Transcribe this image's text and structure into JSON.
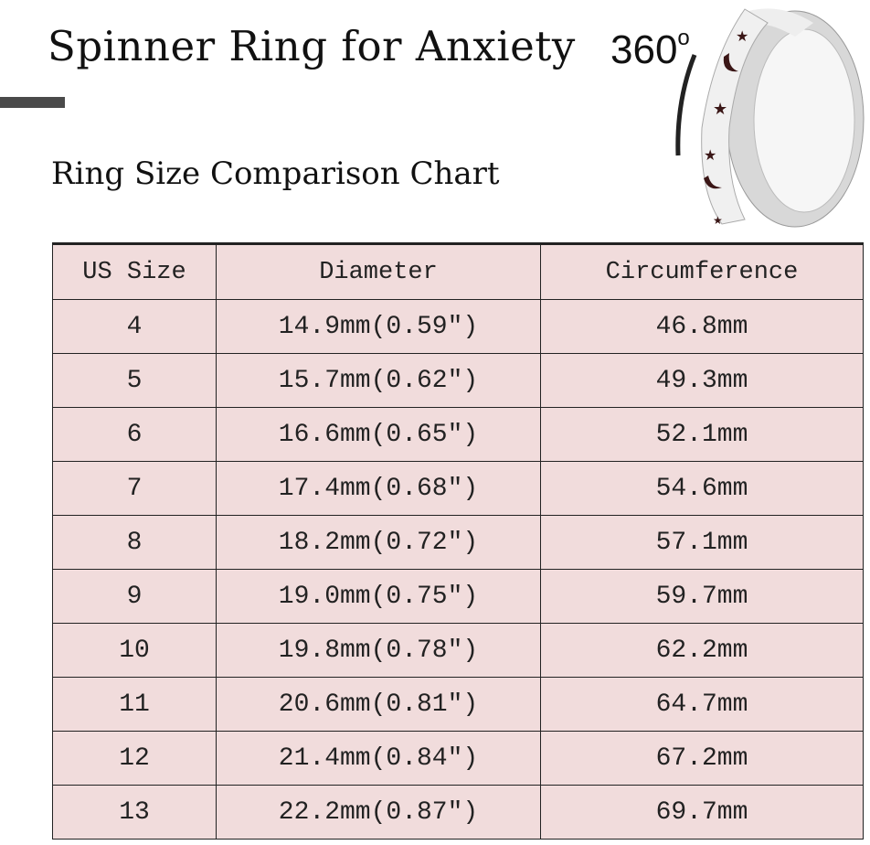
{
  "title": "Spinner Ring for Anxiety",
  "subtitle": "Ring Size Comparison Chart",
  "rotation_label": "360",
  "rotation_unit": "o",
  "table": {
    "headers": [
      "US Size",
      "Diameter",
      "Circumference"
    ],
    "rows": [
      [
        "4",
        "14.9mm(0.59″)",
        "46.8mm"
      ],
      [
        "5",
        "15.7mm(0.62″)",
        "49.3mm"
      ],
      [
        "6",
        "16.6mm(0.65″)",
        "52.1mm"
      ],
      [
        "7",
        "17.4mm(0.68″)",
        "54.6mm"
      ],
      [
        "8",
        "18.2mm(0.72″)",
        "57.1mm"
      ],
      [
        "9",
        "19.0mm(0.75″)",
        "59.7mm"
      ],
      [
        "10",
        "19.8mm(0.78″)",
        "62.2mm"
      ],
      [
        "11",
        "20.6mm(0.81″)",
        "64.7mm"
      ],
      [
        "12",
        "21.4mm(0.84″)",
        "67.2mm"
      ],
      [
        "13",
        "22.2mm(0.87″)",
        "69.7mm"
      ]
    ]
  },
  "colors": {
    "table_bg": "#f1dcdc",
    "accent_bar": "#4a4a4a"
  }
}
